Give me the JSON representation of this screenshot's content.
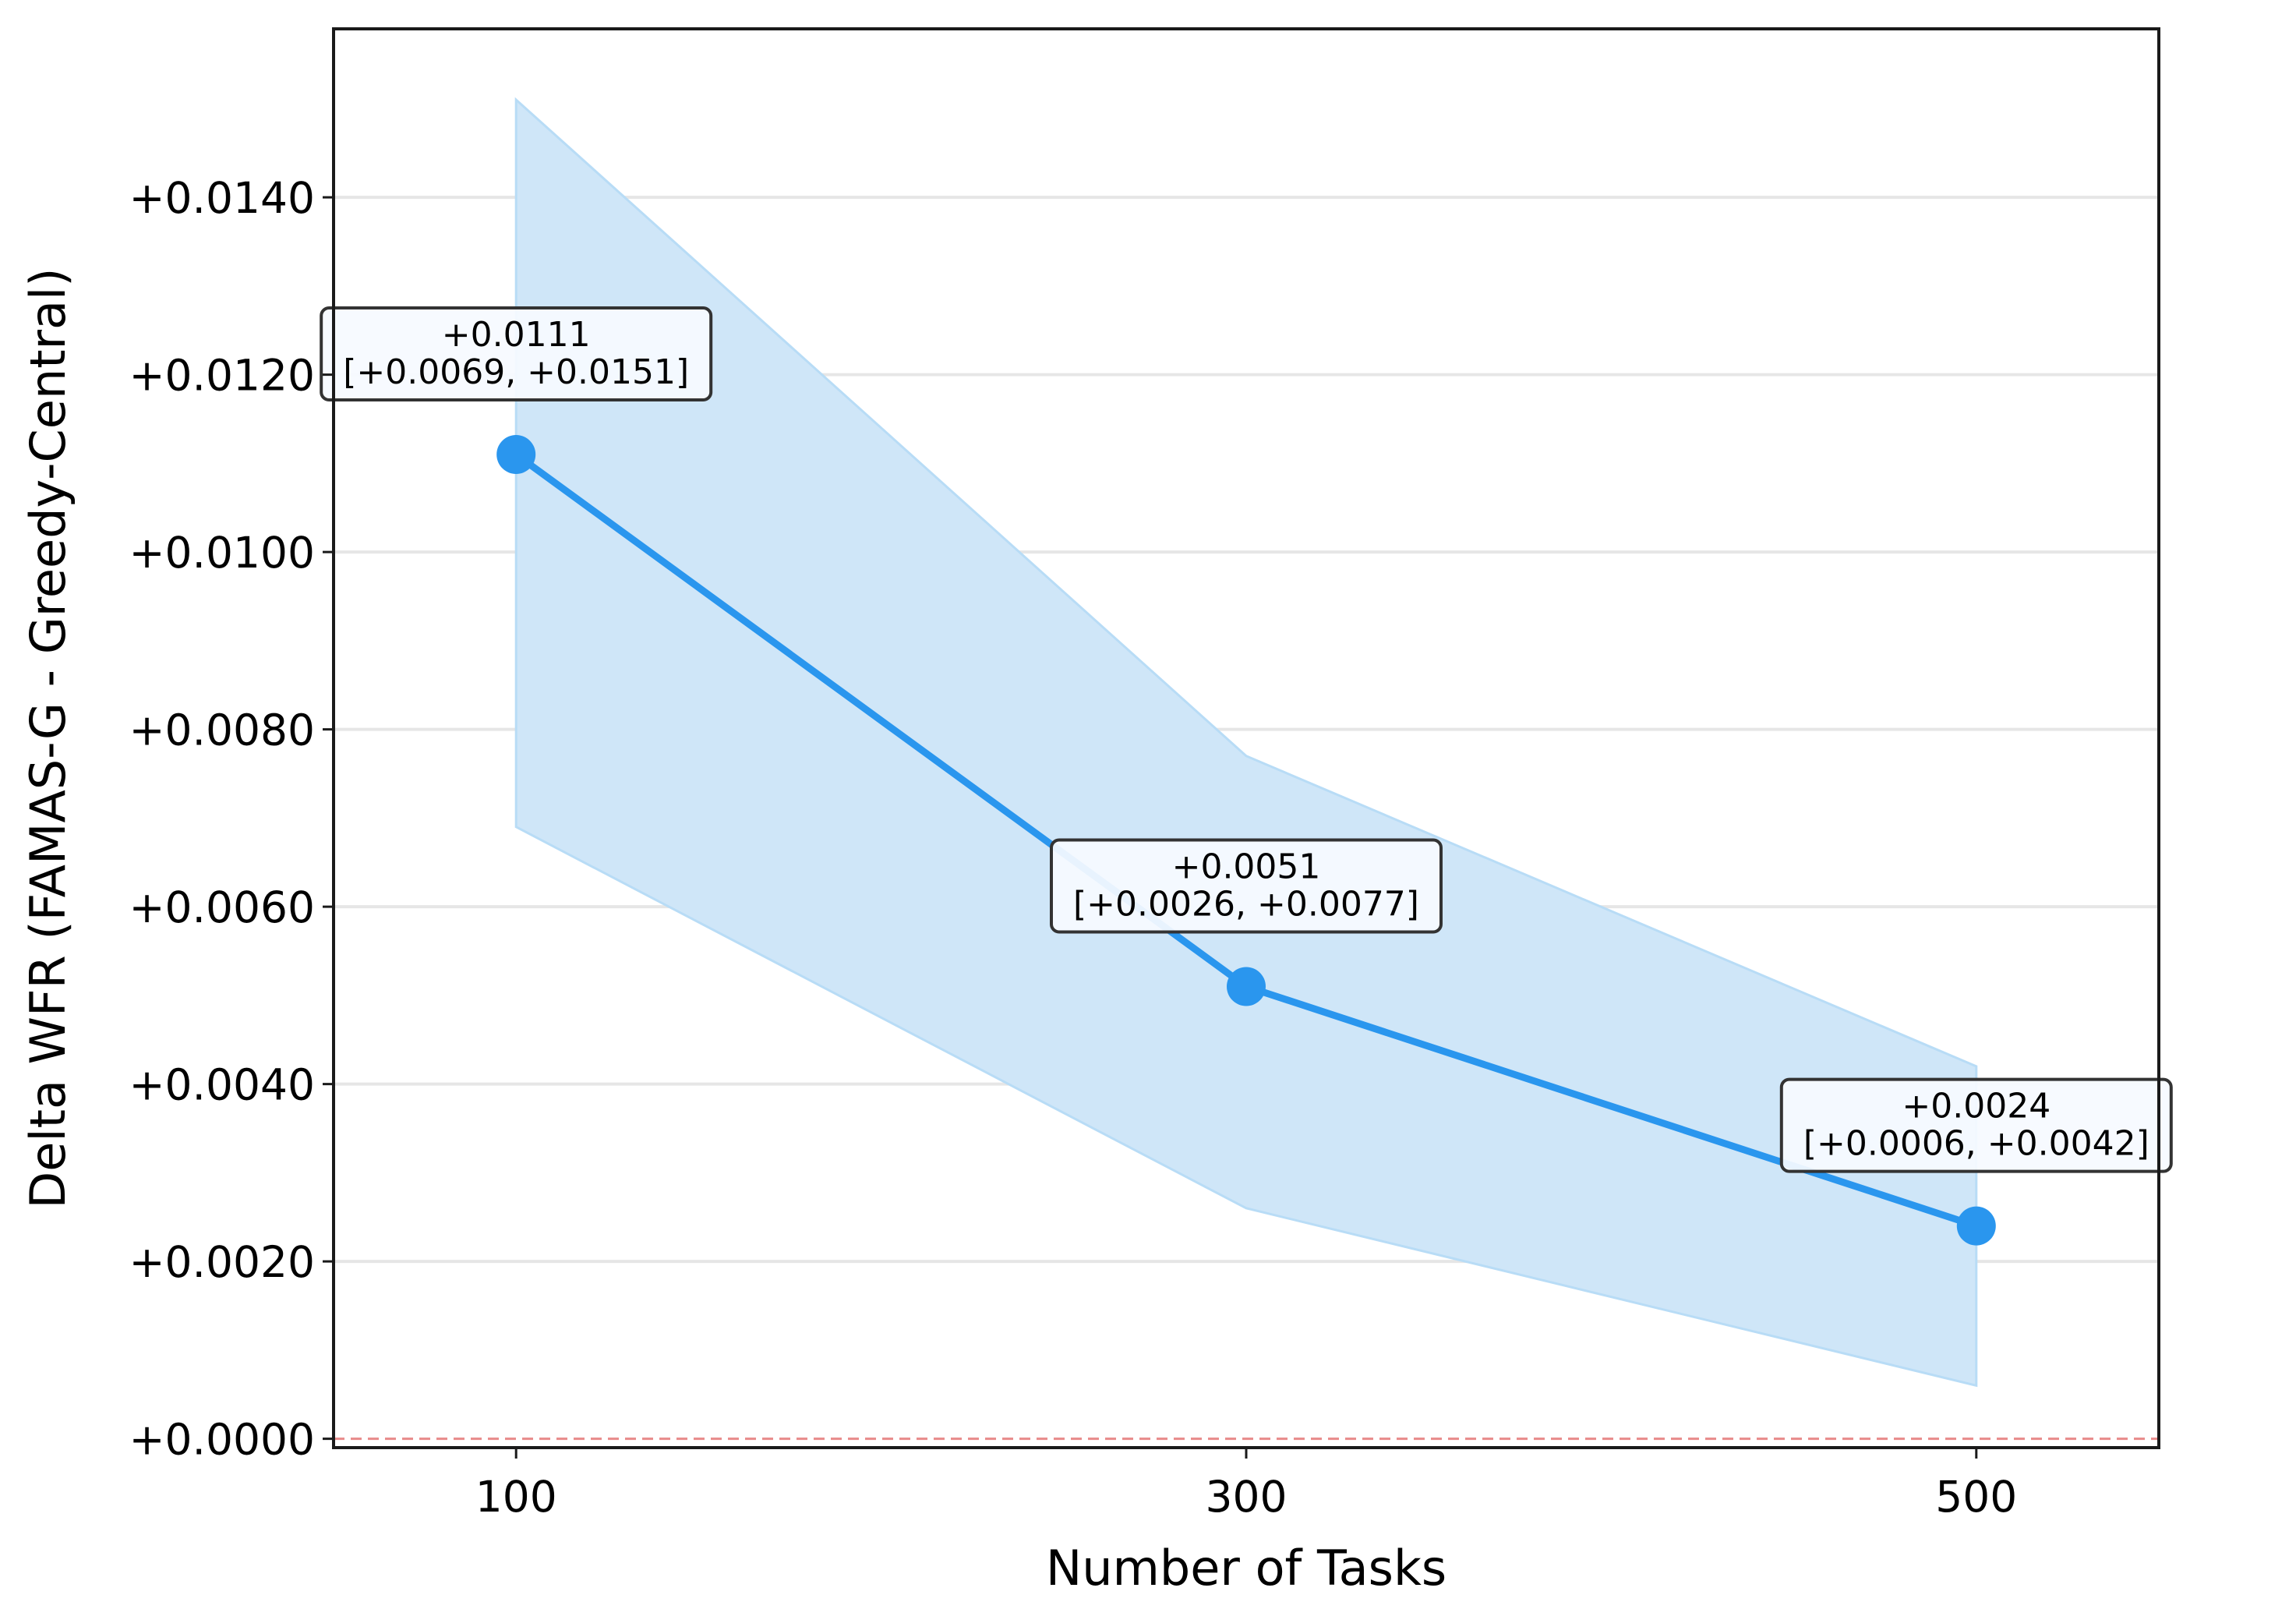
{
  "chart_data": {
    "type": "line",
    "title": "",
    "xlabel": "Number of Tasks",
    "ylabel": "Delta WFR (FAMAS-G - Greedy-Central)",
    "xlim": [
      50,
      550
    ],
    "ylim": [
      -0.0001,
      0.0159
    ],
    "xticks": [
      100,
      300,
      500
    ],
    "xtick_labels": [
      "100",
      "300",
      "500"
    ],
    "yticks": [
      0.0,
      0.002,
      0.004,
      0.006,
      0.008,
      0.01,
      0.012,
      0.014
    ],
    "ytick_labels": [
      "+0.0000",
      "+0.0020",
      "+0.0040",
      "+0.0060",
      "+0.0080",
      "+0.0100",
      "+0.0120",
      "+0.0140"
    ],
    "grid": "horizontal",
    "reference_line": {
      "y": 0.0,
      "color": "#e88a8a",
      "style": "dashed"
    },
    "series": [
      {
        "x": [
          100,
          300,
          500
        ],
        "y": [
          0.0111,
          0.0051,
          0.0024
        ],
        "ci_lower": [
          0.0069,
          0.0026,
          0.0006
        ],
        "ci_upper": [
          0.0151,
          0.0077,
          0.0042
        ],
        "color": "#2a96ee",
        "band_color": "#cfe6f8",
        "labels": [
          [
            "+0.0111",
            "[+0.0069, +0.0151]"
          ],
          [
            "+0.0051",
            "[+0.0026, +0.0077]"
          ],
          [
            "+0.0024",
            "[+0.0006, +0.0042]"
          ]
        ]
      }
    ]
  }
}
